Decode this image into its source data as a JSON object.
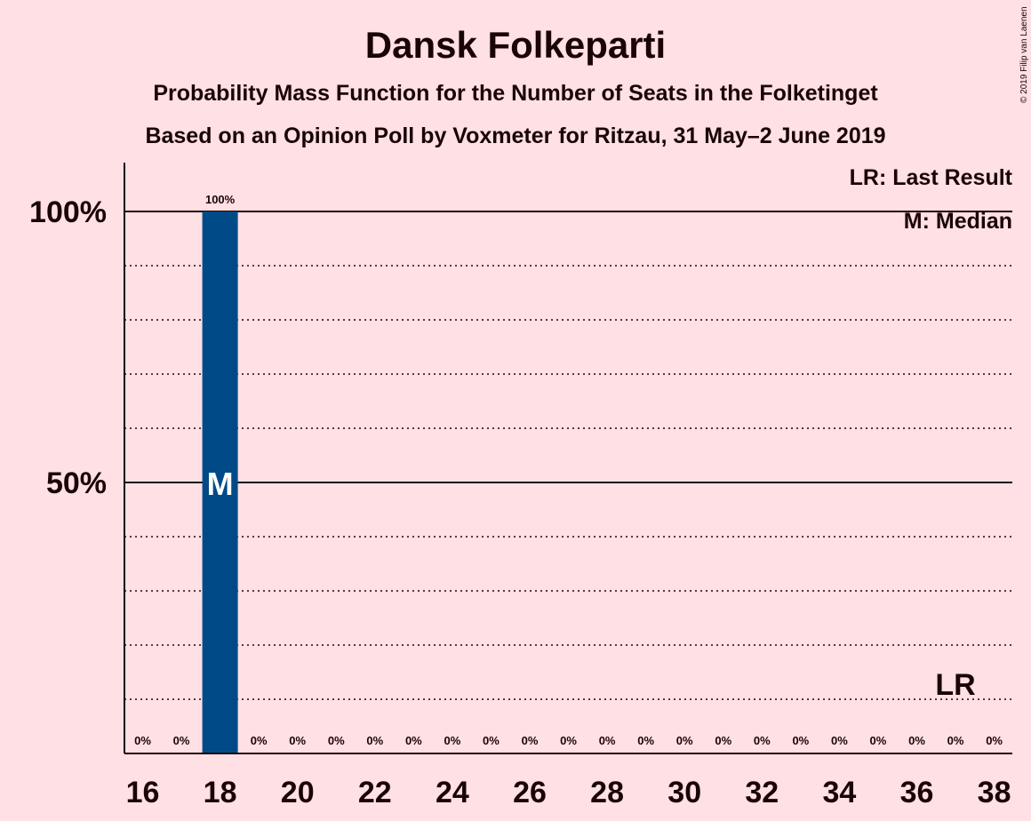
{
  "title": "Dansk Folkeparti",
  "subtitle": "Probability Mass Function for the Number of Seats in the Folketinget",
  "subtitle2": "Based on an Opinion Poll by Voxmeter for Ritzau, 31 May–2 June 2019",
  "copyright": "© 2019 Filip van Laenen",
  "legend": {
    "lr": "LR: Last Result",
    "m": "M: Median"
  },
  "colors": {
    "background": "#ffe0e4",
    "bar": "#004b87",
    "text": "#1a0505"
  },
  "chart_data": {
    "type": "bar",
    "title": "Dansk Folkeparti",
    "x": [
      16,
      17,
      18,
      19,
      20,
      21,
      22,
      23,
      24,
      25,
      26,
      27,
      28,
      29,
      30,
      31,
      32,
      33,
      34,
      35,
      36,
      37,
      38
    ],
    "values": [
      0,
      0,
      100,
      0,
      0,
      0,
      0,
      0,
      0,
      0,
      0,
      0,
      0,
      0,
      0,
      0,
      0,
      0,
      0,
      0,
      0,
      0,
      0
    ],
    "value_labels": [
      "0%",
      "0%",
      "100%",
      "0%",
      "0%",
      "0%",
      "0%",
      "0%",
      "0%",
      "0%",
      "0%",
      "0%",
      "0%",
      "0%",
      "0%",
      "0%",
      "0%",
      "0%",
      "0%",
      "0%",
      "0%",
      "0%",
      "0%"
    ],
    "x_ticks": [
      16,
      18,
      20,
      22,
      24,
      26,
      28,
      30,
      32,
      34,
      36,
      38
    ],
    "y_ticks": [
      {
        "value": 50,
        "label": "50%"
      },
      {
        "value": 100,
        "label": "100%"
      }
    ],
    "y_grid_dotted": [
      10,
      20,
      30,
      40,
      60,
      70,
      80,
      90
    ],
    "ylim": [
      0,
      110
    ],
    "median": 18,
    "median_marker": "M",
    "last_result": 37,
    "last_result_marker": "LR",
    "legend_position": "top-right"
  }
}
